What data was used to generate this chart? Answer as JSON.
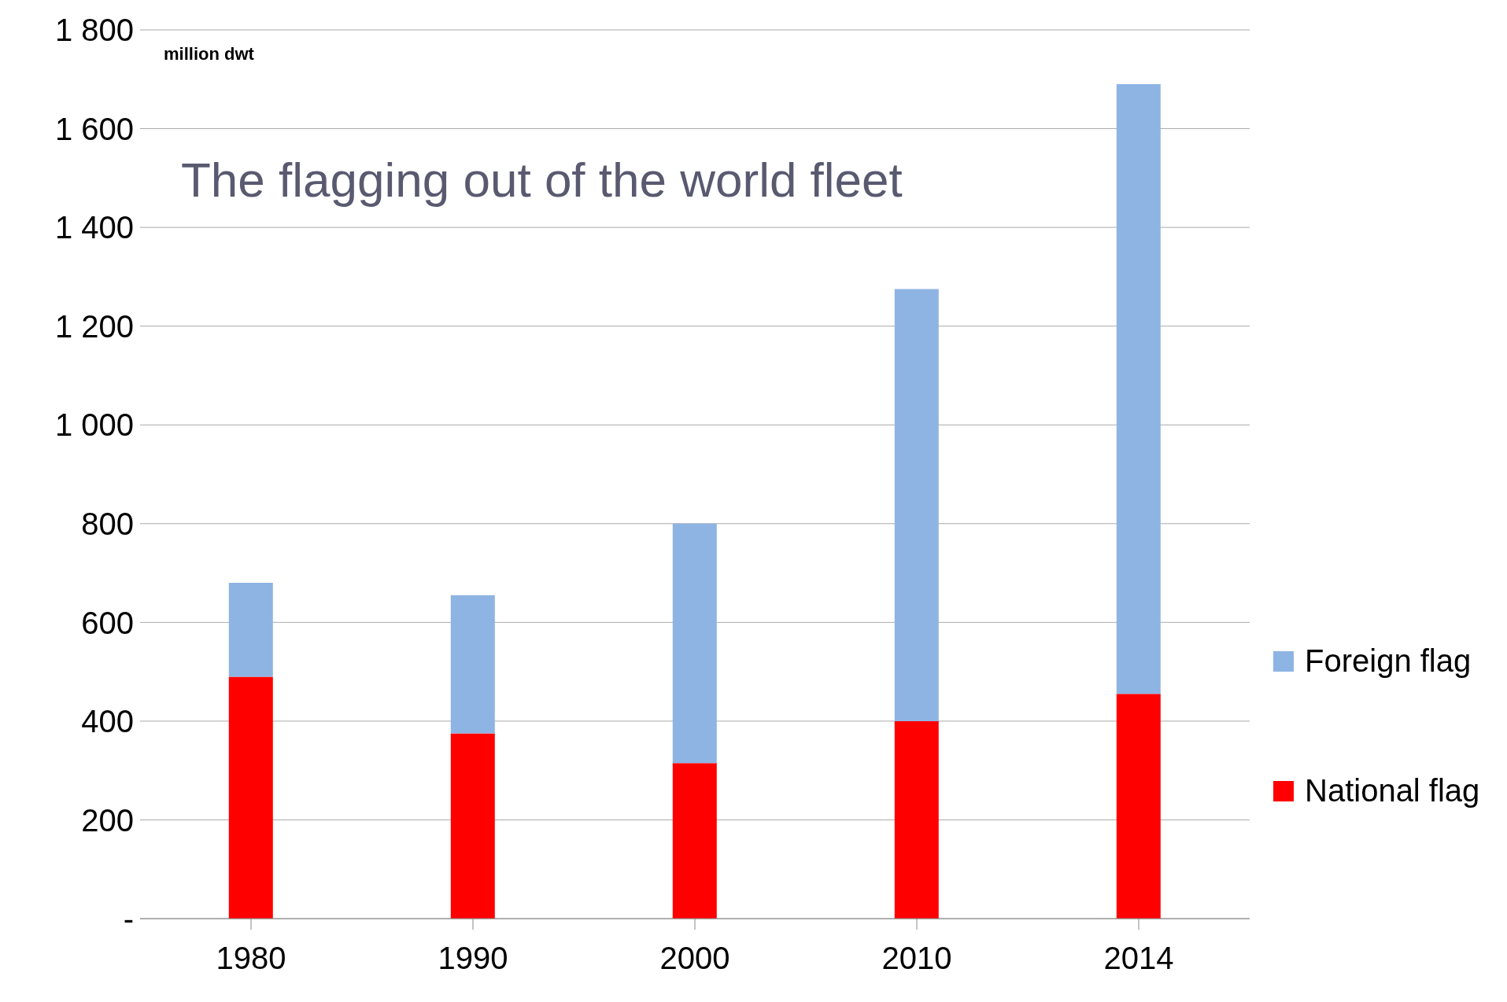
{
  "chart_data": {
    "type": "bar",
    "title": "The flagging out of the world fleet",
    "ylabel": "million dwt",
    "categories": [
      "1980",
      "1990",
      "2000",
      "2010",
      "2014"
    ],
    "stacked": true,
    "series": [
      {
        "name": "National flag",
        "color": "#ff0000",
        "values": [
          490,
          375,
          315,
          400,
          455
        ]
      },
      {
        "name": "Foreign flag",
        "color": "#8eb4e3",
        "values": [
          190,
          280,
          485,
          875,
          1235
        ]
      }
    ],
    "ylim": [
      0,
      1800
    ],
    "yticks": [
      {
        "value": 0,
        "label": "-"
      },
      {
        "value": 200,
        "label": "200"
      },
      {
        "value": 400,
        "label": "400"
      },
      {
        "value": 600,
        "label": "600"
      },
      {
        "value": 800,
        "label": "800"
      },
      {
        "value": 1000,
        "label": "1 000"
      },
      {
        "value": 1200,
        "label": "1 200"
      },
      {
        "value": 1400,
        "label": "1 400"
      },
      {
        "value": 1600,
        "label": "1 600"
      },
      {
        "value": 1800,
        "label": "1 800"
      }
    ],
    "grid": "y",
    "legend": "right"
  }
}
